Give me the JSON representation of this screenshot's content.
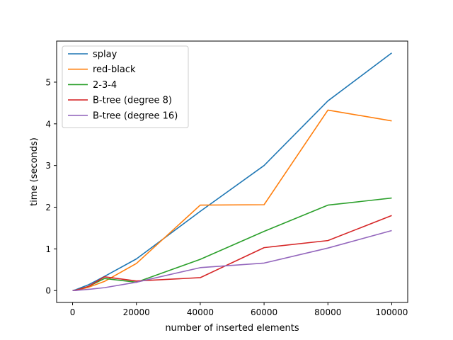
{
  "chart_data": {
    "type": "line",
    "title": "",
    "xlabel": "number of inserted elements",
    "ylabel": "time (seconds)",
    "xlim": [
      -5000,
      105000
    ],
    "ylim": [
      -0.285,
      5.985
    ],
    "xticks": [
      0,
      20000,
      40000,
      60000,
      80000,
      100000
    ],
    "xtick_labels": [
      "0",
      "20000",
      "40000",
      "60000",
      "80000",
      "100000"
    ],
    "yticks": [
      0,
      1,
      2,
      3,
      4,
      5
    ],
    "ytick_labels": [
      "0",
      "1",
      "2",
      "3",
      "4",
      "5"
    ],
    "grid": false,
    "legend_position": "upper-left",
    "x": [
      0,
      1000,
      2000,
      5000,
      10000,
      20000,
      40000,
      60000,
      80000,
      100000
    ],
    "series": [
      {
        "name": "splay",
        "color": "#1f77b4",
        "values": [
          0.0,
          0.02,
          0.05,
          0.14,
          0.34,
          0.76,
          1.9,
          3.0,
          4.55,
          5.7
        ]
      },
      {
        "name": "red-black",
        "color": "#ff7f0e",
        "values": [
          0.0,
          0.01,
          0.02,
          0.08,
          0.22,
          0.65,
          2.05,
          2.06,
          4.33,
          4.07
        ]
      },
      {
        "name": "2-3-4",
        "color": "#2ca02c",
        "values": [
          0.0,
          0.01,
          0.03,
          0.1,
          0.29,
          0.2,
          0.75,
          1.42,
          2.05,
          2.22
        ]
      },
      {
        "name": "B-tree (degree 8)",
        "color": "#d62728",
        "values": [
          0.0,
          0.01,
          0.03,
          0.1,
          0.33,
          0.23,
          0.31,
          1.03,
          1.2,
          1.8
        ]
      },
      {
        "name": "B-tree (degree 16)",
        "color": "#9467bd",
        "values": [
          0.0,
          0.0,
          0.01,
          0.03,
          0.07,
          0.2,
          0.55,
          0.66,
          1.02,
          1.44
        ]
      }
    ]
  }
}
